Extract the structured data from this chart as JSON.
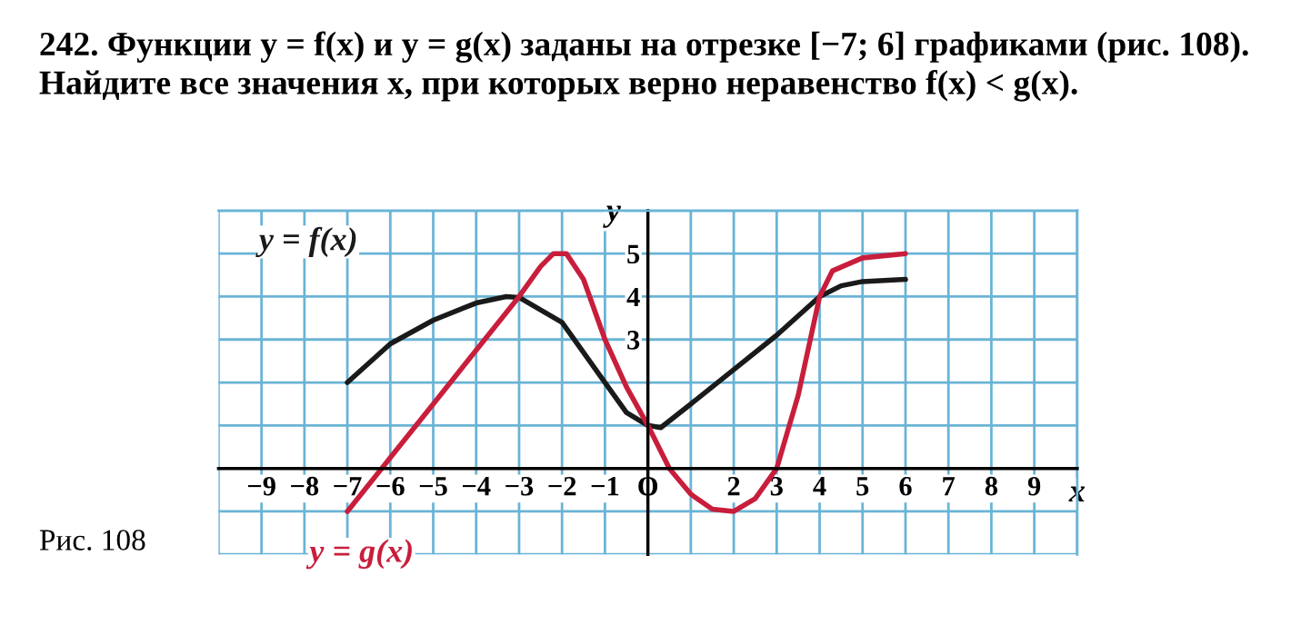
{
  "chart_data": {
    "type": "line",
    "title": "242. Функции y = f(x) и y = g(x) заданы на отрезке [−7; 6] графиками (рис. 108). Найдите все значения x, при которых верно неравенство f(x) < g(x).",
    "xlabel": "x",
    "ylabel": "y",
    "annotations": [
      "Рис. 108"
    ],
    "xlim": [
      -10,
      10
    ],
    "ylim": [
      -2,
      6
    ],
    "xticks": [
      {
        "value": -10,
        "label": null
      },
      -9,
      -8,
      -7,
      -6,
      -5,
      -4,
      -3,
      -2,
      -1,
      {
        "value": 0,
        "label": "O"
      },
      {
        "value": 1,
        "label": null
      },
      2,
      3,
      4,
      5,
      6,
      7,
      8,
      9,
      {
        "value": 10,
        "label": null
      }
    ],
    "yticks": [
      {
        "value": -2,
        "label": null
      },
      {
        "value": -1,
        "label": null
      },
      {
        "value": 1,
        "label": null
      },
      {
        "value": 2,
        "label": null
      },
      3,
      4,
      5,
      {
        "value": 6,
        "label": null
      }
    ],
    "grid": true,
    "line_style": "solid",
    "series": [
      {
        "name": "y = f(x)",
        "color": "#1a1a1a",
        "x": [
          -7,
          -6,
          -5,
          -4,
          -3.3,
          -3,
          -2,
          -1,
          -0.5,
          0,
          0.3,
          1,
          2,
          3,
          4,
          4.5,
          5,
          6
        ],
        "values": [
          2,
          2.9,
          3.45,
          3.85,
          4.0,
          3.98,
          3.4,
          2.0,
          1.3,
          1.0,
          0.95,
          1.5,
          2.3,
          3.1,
          4.0,
          4.25,
          4.35,
          4.4
        ]
      },
      {
        "name": "y = g(x)",
        "color": "#c81e3c",
        "x": [
          -7,
          -6,
          -5,
          -4,
          -3,
          -2.5,
          -2.2,
          -1.9,
          -1.5,
          -1,
          -0.5,
          0,
          0.5,
          1,
          1.5,
          2,
          2.5,
          3,
          3.5,
          4,
          4.3,
          5,
          6
        ],
        "values": [
          -1,
          0.25,
          1.5,
          2.75,
          4,
          4.7,
          5.0,
          5.0,
          4.4,
          3.0,
          1.9,
          1,
          0,
          -0.6,
          -0.95,
          -1,
          -0.7,
          0,
          1.7,
          4,
          4.6,
          4.9,
          5
        ]
      }
    ]
  }
}
